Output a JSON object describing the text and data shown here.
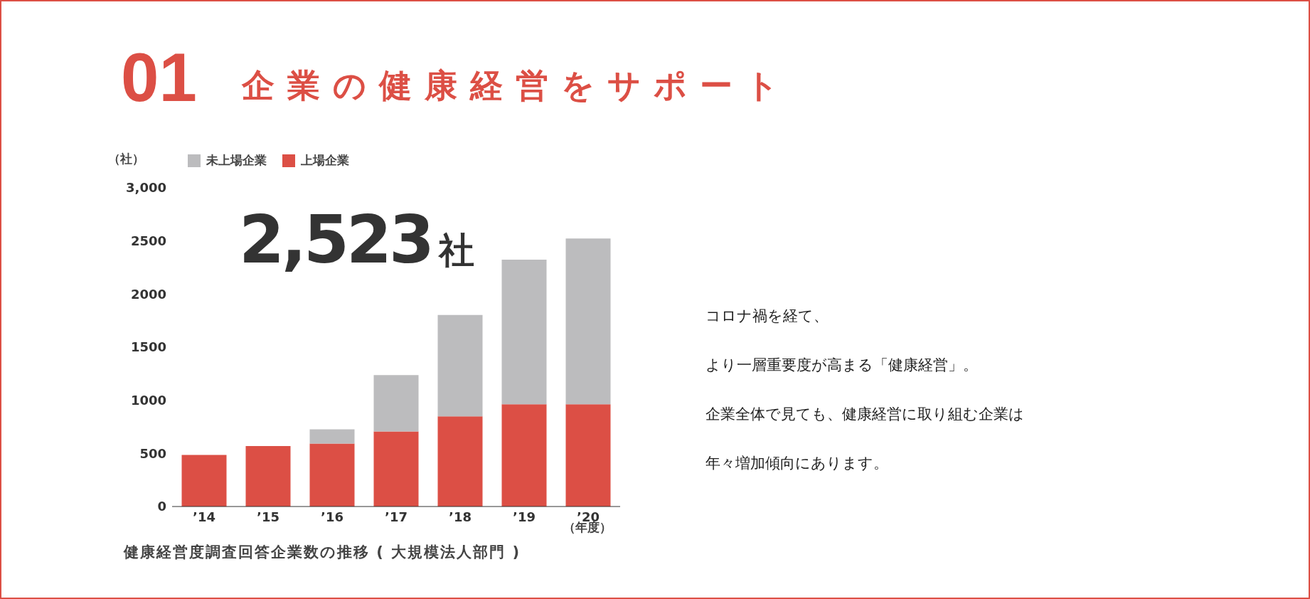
{
  "chart_data": {
    "type": "bar",
    "title": "企業の健康経営をサポート",
    "ylabel": "（社）",
    "xlabel": "（年度）",
    "categories": [
      "’14",
      "’15",
      "’16",
      "’17",
      "’18",
      "’19",
      "’20"
    ],
    "stacked": true,
    "series": [
      {
        "name": "上場企業",
        "color": "#dc4f45",
        "values": [
          485,
          569,
          592,
          706,
          849,
          963,
          963
        ]
      },
      {
        "name": "未上場企業",
        "color": "#bcbcbe",
        "values": [
          0,
          null,
          134,
          531,
          954,
          1361,
          1560
        ]
      }
    ],
    "ylim": [
      0,
      3000
    ],
    "yticks": [
      0,
      500,
      1000,
      1500,
      2000,
      2500,
      {
        "value": 3000,
        "label": "3,000"
      }
    ],
    "grid": false,
    "legend": "top",
    "annotations": [
      "01",
      "2,523社",
      "健康経営度調査回答企業数の推移 ( 大規模法人部門 )",
      "コロナ禍を経て、",
      "より一層重要度が高まる「健康経営」。",
      "企業全体で見ても、健康経営に取り組む企業は",
      "年々増加傾向にあります。"
    ]
  }
}
